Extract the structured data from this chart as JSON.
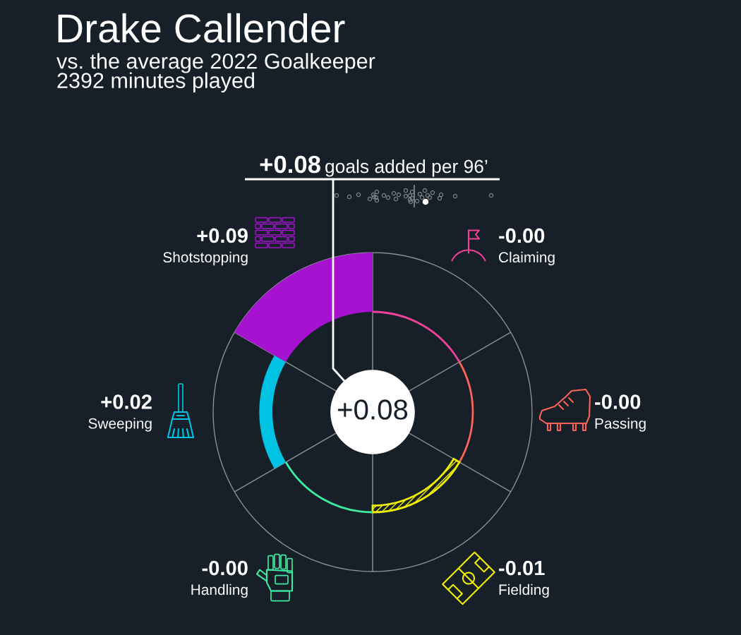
{
  "chart_data": {
    "type": "other",
    "title": "Drake Callender",
    "subtitle": "vs. the average 2022 Goalkeeper\n2392 minutes played",
    "categories": [
      "Claiming",
      "Passing",
      "Fielding",
      "Handling",
      "Sweeping",
      "Shotstopping"
    ],
    "series": [
      {
        "type": "bar",
        "colors": [
          "#f0409a",
          "#fc6458",
          "#f0f000",
          "#3eeaa0",
          "#00c3e3",
          "#a612d0"
        ],
        "values": [
          -0.0,
          -0.0,
          -0.01,
          -0.0,
          0.02,
          0.09
        ],
        "value_labels": [
          "-0.00",
          "-0.00",
          "-0.01",
          "-0.00",
          "+0.02",
          "+0.09"
        ]
      }
    ],
    "annotations": [
      "+0.08",
      "goals added per 96’",
      "+0.08"
    ]
  }
}
